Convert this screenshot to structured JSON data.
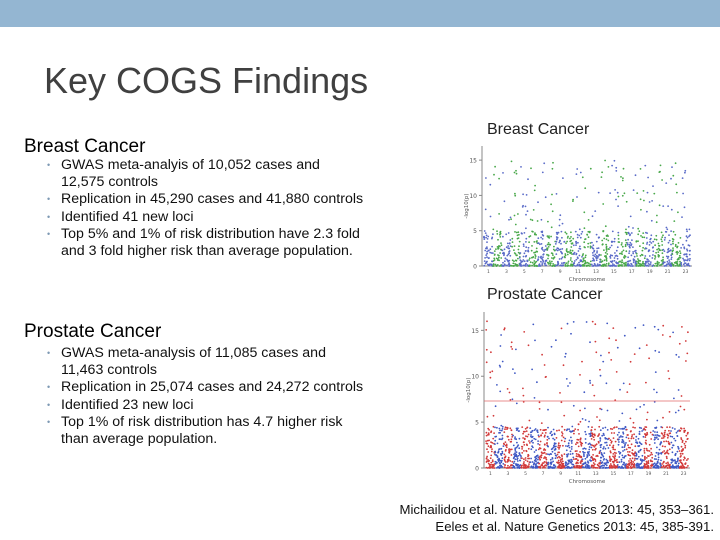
{
  "slide": {
    "title": "Key COGS Findings",
    "colors": {
      "top_bar": "#94b6d2",
      "breast_points": [
        "#5a6bc8",
        "#49a84a"
      ],
      "prostate_points": [
        "#d23a3a",
        "#3f58c4"
      ]
    }
  },
  "breast": {
    "heading": "Breast Cancer",
    "bullets": [
      "GWAS meta-analyis of 10,052 cases and 12,575 controls",
      "Replication in 45,290 cases and 41,880 controls",
      "Identified 41 new loci",
      "Top 5% and 1% of risk distribution have 2.3 fold and 3 fold higher risk than average population."
    ]
  },
  "prostate": {
    "heading": "Prostate Cancer",
    "bullets": [
      "GWAS meta-analysis of 11,085 cases and 11,463 controls",
      "Replication in 25,074 cases and 24,272 controls",
      "Identified 23 new loci",
      "Top 1% of risk distribution has 4.7 higher risk than average population."
    ]
  },
  "figures": {
    "breast": {
      "label": "Breast Cancer",
      "y_ticks": [
        "0",
        "5",
        "10",
        "15"
      ],
      "x_ticks": [
        "1",
        "3",
        "5",
        "7",
        "9",
        "11",
        "13",
        "15",
        "17",
        "19",
        "21",
        "23"
      ],
      "x_label": "Chromosome",
      "y_label": "-log10(p)"
    },
    "prostate": {
      "label": "Prostate Cancer",
      "y_ticks": [
        "0",
        "5",
        "10",
        "15"
      ],
      "x_ticks": [
        "1",
        "3",
        "5",
        "7",
        "9",
        "11",
        "13",
        "15",
        "17",
        "19",
        "21",
        "23"
      ],
      "x_label": "Chromosome",
      "y_label": "-log10(p)"
    }
  },
  "references": [
    "Michailidou et al. Nature Genetics 2013: 45, 353–361.",
    "Eeles et al. Nature Genetics 2013: 45, 385-391."
  ]
}
